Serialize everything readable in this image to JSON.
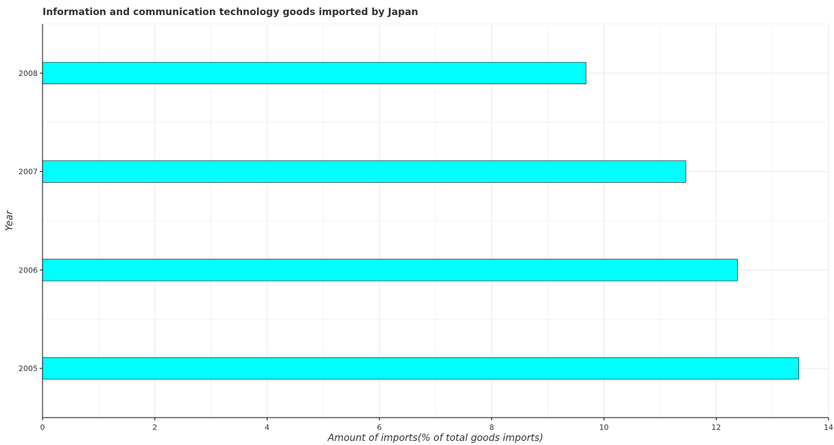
{
  "chart_data": {
    "type": "bar",
    "orientation": "horizontal",
    "title": "Information and communication technology goods imported by Japan",
    "xlabel": "Amount of imports(% of total goods imports)",
    "ylabel": "Year",
    "categories": [
      "2005",
      "2006",
      "2007",
      "2008"
    ],
    "values": [
      13.47,
      12.38,
      11.46,
      9.68
    ],
    "xlim": [
      0,
      14
    ],
    "xticks": [
      0,
      2,
      4,
      6,
      8,
      10,
      12,
      14
    ],
    "grid": true,
    "legend": "none",
    "bar_color": "#00ffff",
    "bar_edge_color": "#000000"
  }
}
